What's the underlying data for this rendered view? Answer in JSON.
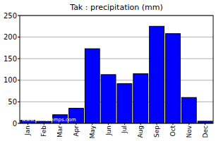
{
  "chart_data": {
    "type": "bar",
    "title": "Tak : precipitation (mm)",
    "categories": [
      "Jan",
      "Feb",
      "Mar",
      "Apr",
      "May",
      "Jun",
      "Jul",
      "Aug",
      "Sep",
      "Oct",
      "Nov",
      "Dec"
    ],
    "values": [
      7,
      5,
      20,
      35,
      173,
      113,
      92,
      115,
      225,
      208,
      60,
      5
    ],
    "color": "#0000ff",
    "ylim": [
      0,
      250
    ],
    "yticks": [
      0,
      50,
      100,
      150,
      200,
      250
    ],
    "grid": true,
    "annotation": "www.climatemps.com"
  }
}
